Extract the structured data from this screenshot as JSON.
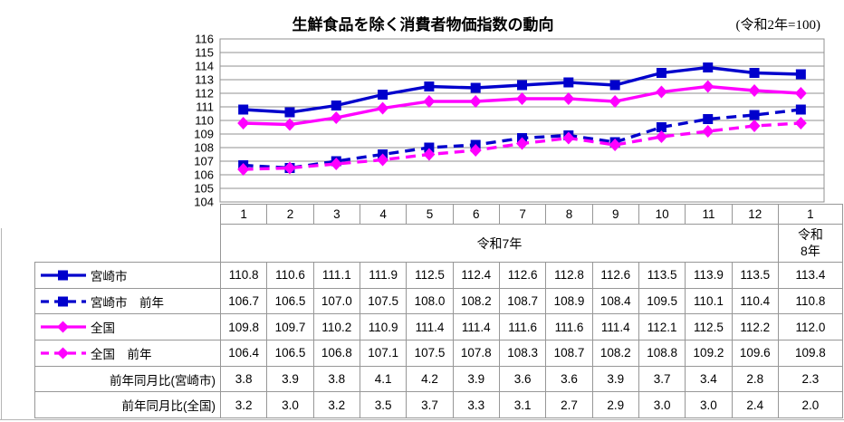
{
  "title": "生鮮食品を除く消費者物価指数の動向",
  "subtitle": "(令和2年=100)",
  "chart_data": {
    "type": "line",
    "x_categories": [
      "1",
      "2",
      "3",
      "4",
      "5",
      "6",
      "7",
      "8",
      "9",
      "10",
      "11",
      "12",
      "1"
    ],
    "x_group_labels": [
      {
        "label": "令和7年",
        "span": 12
      },
      {
        "label": "令和8年",
        "span": 1
      }
    ],
    "ylabel": "",
    "xlabel": "",
    "ylim": [
      104,
      116
    ],
    "ytick_step": 1,
    "grid": "horizontal",
    "legend_position": "table-left",
    "colors": {
      "miyazaki": "#0000CC",
      "zenkoku": "#FF00FF",
      "gridline": "#909090"
    },
    "series": [
      {
        "name": "宮崎市",
        "color": "#0000CC",
        "style": "solid",
        "marker": "square",
        "values": [
          110.8,
          110.6,
          111.1,
          111.9,
          112.5,
          112.4,
          112.6,
          112.8,
          112.6,
          113.5,
          113.9,
          113.5,
          113.4
        ]
      },
      {
        "name": "宮崎市　前年",
        "color": "#0000CC",
        "style": "dashed",
        "marker": "square",
        "values": [
          106.7,
          106.5,
          107.0,
          107.5,
          108.0,
          108.2,
          108.7,
          108.9,
          108.4,
          109.5,
          110.1,
          110.4,
          110.8
        ]
      },
      {
        "name": "全国",
        "color": "#FF00FF",
        "style": "solid",
        "marker": "diamond",
        "values": [
          109.8,
          109.7,
          110.2,
          110.9,
          111.4,
          111.4,
          111.6,
          111.6,
          111.4,
          112.1,
          112.5,
          112.2,
          112.0
        ]
      },
      {
        "name": "全国　前年",
        "color": "#FF00FF",
        "style": "dashed",
        "marker": "diamond",
        "values": [
          106.4,
          106.5,
          106.8,
          107.1,
          107.5,
          107.8,
          108.3,
          108.7,
          108.2,
          108.8,
          109.2,
          109.6,
          109.8
        ]
      }
    ],
    "extra_rows": [
      {
        "name": "前年同月比(宮崎市)",
        "values": [
          3.8,
          3.9,
          3.8,
          4.1,
          4.2,
          3.9,
          3.6,
          3.6,
          3.9,
          3.7,
          3.4,
          2.8,
          2.3
        ]
      },
      {
        "name": "前年同月比(全国)",
        "values": [
          3.2,
          3.0,
          3.2,
          3.5,
          3.7,
          3.3,
          3.1,
          2.7,
          2.9,
          3.0,
          3.0,
          2.4,
          2.0
        ]
      }
    ]
  }
}
